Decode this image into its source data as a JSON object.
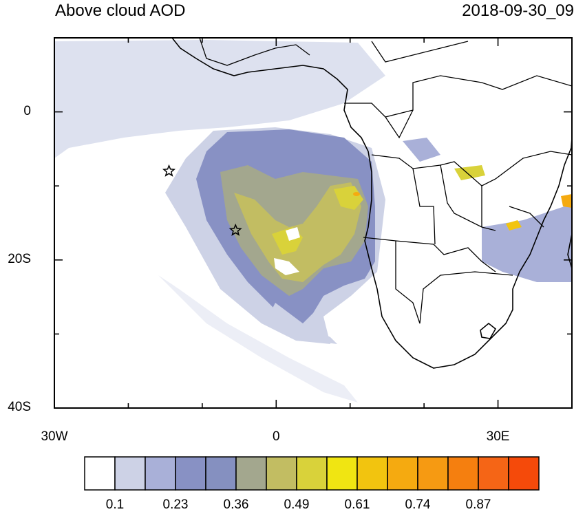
{
  "map": {
    "title": "Above cloud AOD",
    "timestamp": "2018-09-30_09",
    "lon_ticks": [
      {
        "value": -30,
        "label": "30W"
      },
      {
        "value": 0,
        "label": "0"
      },
      {
        "value": 30,
        "label": "30E"
      }
    ],
    "lat_ticks": [
      {
        "value": 0,
        "label": "0"
      },
      {
        "value": -20,
        "label": "20S"
      },
      {
        "value": -40,
        "label": "40S"
      }
    ],
    "lon_range": [
      -30,
      40
    ],
    "lat_range": [
      -40,
      10
    ],
    "markers": [
      {
        "name": "star-marker-west",
        "lon": -14.5,
        "lat": -8
      },
      {
        "name": "star-marker-east",
        "lon": -5.5,
        "lat": -16
      }
    ]
  },
  "colorbar": {
    "levels": [
      "0.1",
      "0.23",
      "0.36",
      "0.49",
      "0.61",
      "0.74",
      "0.87"
    ],
    "colors": [
      "#ffffff",
      "#cdd2e6",
      "#a9b0d8",
      "#8891c4",
      "#8590c0",
      "#a3a78e",
      "#c2bd62",
      "#d9d23a",
      "#f0e512",
      "#f2c40f",
      "#f5aa10",
      "#f69a12",
      "#f57f0f",
      "#f56516",
      "#f54a0a"
    ]
  }
}
